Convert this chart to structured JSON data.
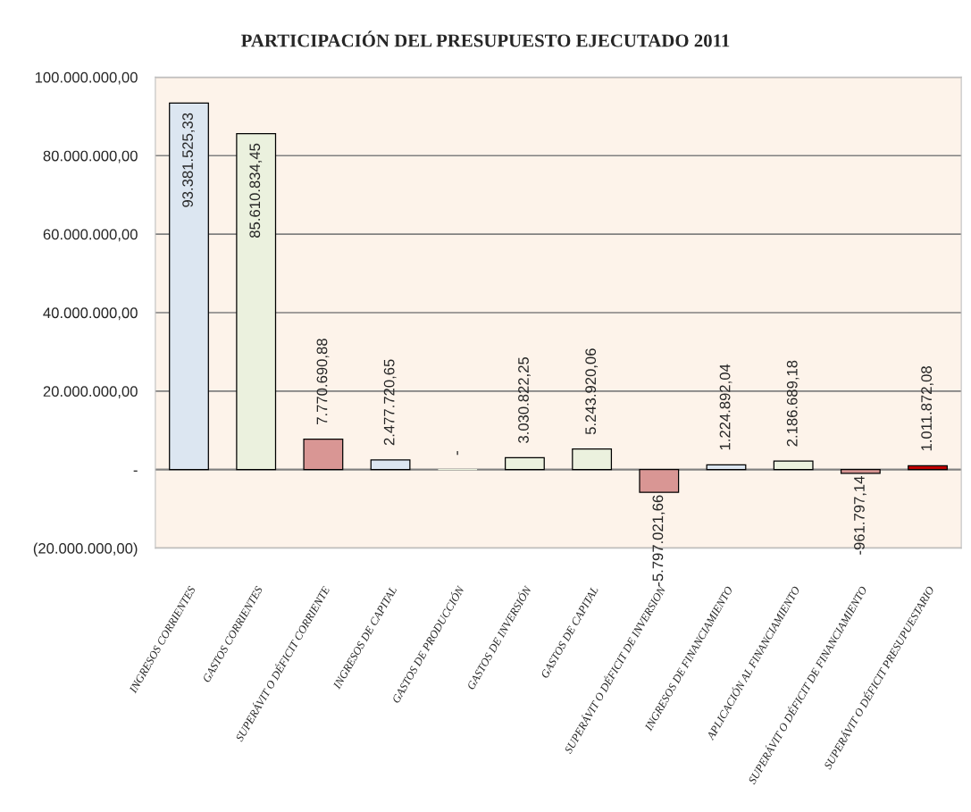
{
  "chart_data": {
    "type": "bar",
    "title": "PARTICIPACIÓN DEL PRESUPUESTO EJECUTADO 2011",
    "categories": [
      "INGRESOS CORRIENTES",
      "GASTOS CORRIENTES",
      "SUPERÁVIT O DÉFICIT CORRIENTE",
      "INGRESOS DE CAPITAL",
      "GASTOS DE PRODUCCIÓN",
      "GASTOS DE INVERSIÓN",
      "GASTOS DE CAPITAL",
      "SUPERÁVIT O DÉFICIT DE INVERSION",
      "INGRESOS DE FINANCIAMIENTO",
      "APLICACIÓN AL FINANCIAMIENTO",
      "SUPERÁVIT O DÉFICIT DE FINANCIAMIENTO",
      "SUPERÁVIT O DÉFICIT PRESUPUESTARIO"
    ],
    "values": [
      93381525.33,
      85610834.45,
      7770690.88,
      2477720.65,
      0,
      3030822.25,
      5243920.06,
      -5797021.66,
      1224892.04,
      2186689.18,
      -961797.14,
      1011872.08
    ],
    "value_labels": [
      "93.381.525,33",
      "85.610.834,45",
      "7.770.690,88",
      "2.477.720,65",
      "-",
      "3.030.822,25",
      "5.243.920,06",
      "-5.797.021,66",
      "1.224.892,04",
      "2.186.689,18",
      "-961.797,14",
      "1.011.872,08"
    ],
    "colors": [
      "#dce6f1",
      "#ebf1de",
      "#d99694",
      "#dce6f1",
      "#ebf1de",
      "#ebf1de",
      "#ebf1de",
      "#d99694",
      "#dce6f1",
      "#ebf1de",
      "#d99694",
      "#c00000"
    ],
    "ylim": [
      -20000000,
      100000000
    ],
    "yticks": [
      {
        "value": -20000000,
        "label": "(20.000.000,00)"
      },
      {
        "value": 0,
        "label": "-"
      },
      {
        "value": 20000000,
        "label": "20.000.000,00"
      },
      {
        "value": 40000000,
        "label": "40.000.000,00"
      },
      {
        "value": 60000000,
        "label": "60.000.000,00"
      },
      {
        "value": 80000000,
        "label": "80.000.000,00"
      },
      {
        "value": 100000000,
        "label": "100.000.000,00"
      }
    ],
    "grid": "y"
  }
}
